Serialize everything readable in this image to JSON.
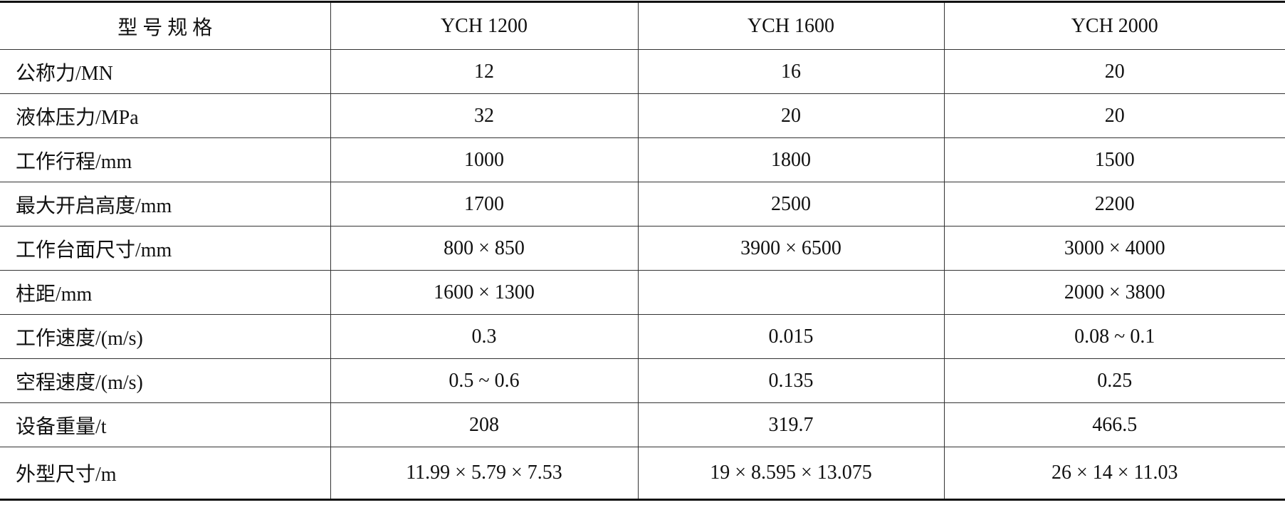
{
  "table": {
    "header": [
      "型 号 规 格",
      "YCH 1200",
      "YCH 1600",
      "YCH 2000"
    ],
    "rows": [
      [
        "公称力/MN",
        "12",
        "16",
        "20"
      ],
      [
        "液体压力/MPa",
        "32",
        "20",
        "20"
      ],
      [
        "工作行程/mm",
        "1000",
        "1800",
        "1500"
      ],
      [
        "最大开启高度/mm",
        "1700",
        "2500",
        "2200"
      ],
      [
        "工作台面尺寸/mm",
        "800 × 850",
        "3900 × 6500",
        "3000 × 4000"
      ],
      [
        "柱距/mm",
        "1600 × 1300",
        null,
        "2000 × 3800"
      ],
      [
        "工作速度/(m/s)",
        "0.3",
        "0.015",
        "0.08 ~ 0.1"
      ],
      [
        "空程速度/(m/s)",
        "0.5 ~ 0.6",
        "0.135",
        "0.25"
      ],
      [
        "设备重量/t",
        "208",
        "319.7",
        "466.5"
      ],
      [
        "外型尺寸/m",
        "11.99 × 5.79 × 7.53",
        "19 × 8.595 × 13.075",
        "26 × 14 × 11.03"
      ]
    ]
  }
}
